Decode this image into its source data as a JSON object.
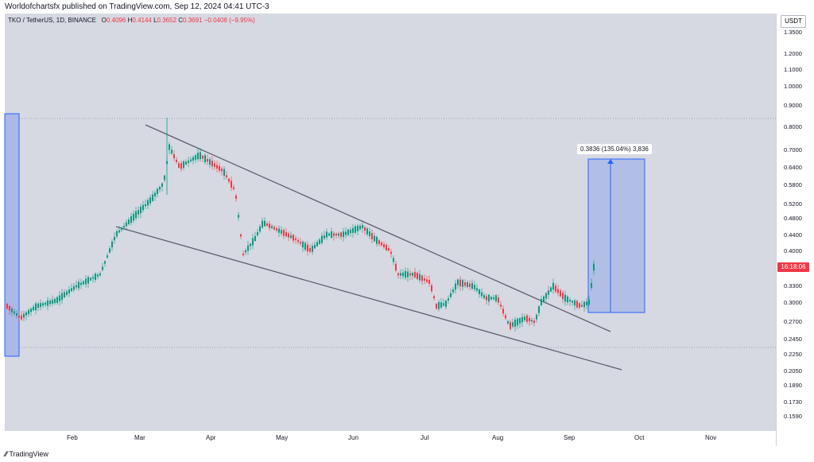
{
  "header": {
    "publisher_line": "Worldofchartsfx published on TradingView.com, Sep 12, 2024 04:41 UTC-3"
  },
  "legend": {
    "symbol": "TKO / TetherUS, 1D, BINANCE",
    "open_label": "O",
    "open": "0.4096",
    "high_label": "H",
    "high": "0.4144",
    "low_label": "L",
    "low": "0.3652",
    "close_label": "C",
    "close": "0.3691",
    "change": "−0.0408 (−9.95%)"
  },
  "price_axis": {
    "currency": "USDT",
    "labels": [
      "1.3500",
      "1.2000",
      "1.1000",
      "1.0000",
      "0.9000",
      "0.8000",
      "0.7000",
      "0.6400",
      "0.5800",
      "0.5200",
      "0.4800",
      "0.4400",
      "0.4000",
      "0.3300",
      "0.3000",
      "0.2700",
      "0.2450",
      "0.2250",
      "0.2050",
      "0.1890",
      "0.1730",
      "0.1590"
    ],
    "last_price_countdown": "16:18:06"
  },
  "time_axis": {
    "months": [
      "Feb",
      "Mar",
      "Apr",
      "May",
      "Jun",
      "Jul",
      "Aug",
      "Sep",
      "Oct",
      "Nov"
    ]
  },
  "measure_tool": {
    "label": "0.3836 (135.04%) 3,836"
  },
  "footer": {
    "brand": "TradingView"
  },
  "colors": {
    "up": "#089981",
    "down": "#f23645",
    "plot_bg": "#d6d9e2",
    "measure_fill": "#aab9e6",
    "measure_line": "#2962ff",
    "trendline": "#5d606b"
  }
}
